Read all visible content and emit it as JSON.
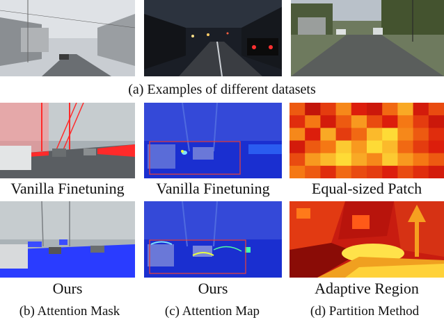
{
  "figure": {
    "caption_a": "(a) Examples of different datasets",
    "row2_labels": [
      "Vanilla Finetuning",
      "Vanilla Finetuning",
      "Equal-sized Patch"
    ],
    "row3_labels": [
      "Ours",
      "Ours",
      "Adaptive Region"
    ],
    "sub_captions": [
      "(b) Attention Mask",
      "(c) Attention Map",
      "(d) Partition Method"
    ]
  },
  "colors": {
    "mask_red": "#ff2a2a",
    "mask_blue": "#2a3cff",
    "map_blue": "#1a2fd0",
    "map_highlight": "#e8ff40",
    "box_red": "#e04040"
  },
  "patch_grid": {
    "cols": 10,
    "rows": 6,
    "values": [
      0.55,
      0.2,
      0.45,
      0.7,
      0.35,
      0.25,
      0.6,
      0.8,
      0.3,
      0.5,
      0.4,
      0.65,
      0.3,
      0.55,
      0.75,
      0.5,
      0.35,
      0.65,
      0.45,
      0.25,
      0.7,
      0.35,
      0.8,
      0.45,
      0.6,
      0.85,
      0.95,
      0.7,
      0.55,
      0.4,
      0.3,
      0.55,
      0.65,
      0.9,
      0.75,
      0.95,
      0.85,
      0.6,
      0.45,
      0.35,
      0.5,
      0.75,
      0.85,
      0.95,
      0.8,
      0.7,
      0.9,
      0.75,
      0.65,
      0.55,
      0.65,
      0.55,
      0.4,
      0.6,
      0.5,
      0.45,
      0.35,
      0.5,
      0.4,
      0.3
    ]
  }
}
